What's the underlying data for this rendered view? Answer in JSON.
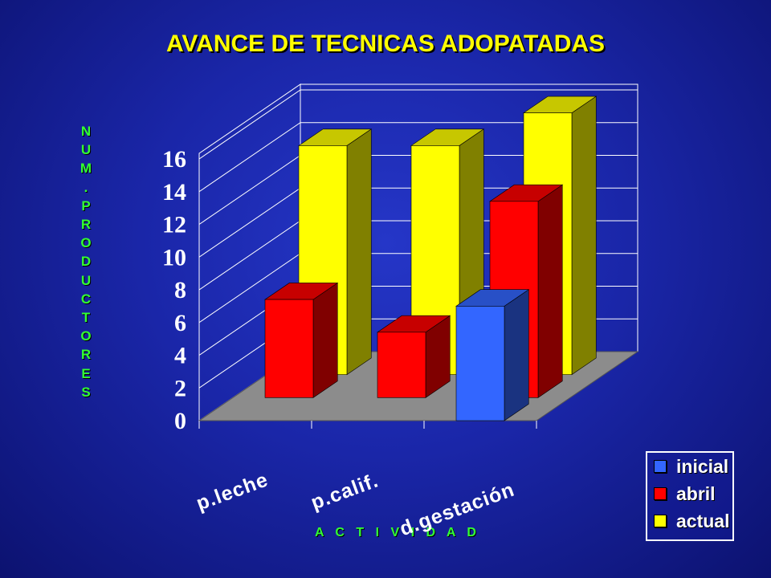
{
  "chart_data": {
    "type": "bar",
    "title": "AVANCE DE TECNICAS ADOPATADAS",
    "ylabel": "NUM.PRODUCTORES",
    "xlabel": "A C T I V I D A D",
    "categories": [
      "p.leche",
      "p.calif.",
      "d.gestación"
    ],
    "series": [
      {
        "name": "inicial",
        "values": [
          0,
          0,
          7
        ],
        "color": "#3366ff"
      },
      {
        "name": "abril",
        "values": [
          6,
          4,
          12
        ],
        "color": "#ff0000"
      },
      {
        "name": "actual",
        "values": [
          14,
          14,
          16
        ],
        "color": "#ffff00"
      }
    ],
    "ylim": [
      0,
      16
    ],
    "yticks": [
      0,
      2,
      4,
      6,
      8,
      10,
      12,
      14,
      16
    ],
    "legend": "bottom-right",
    "grid": true
  }
}
